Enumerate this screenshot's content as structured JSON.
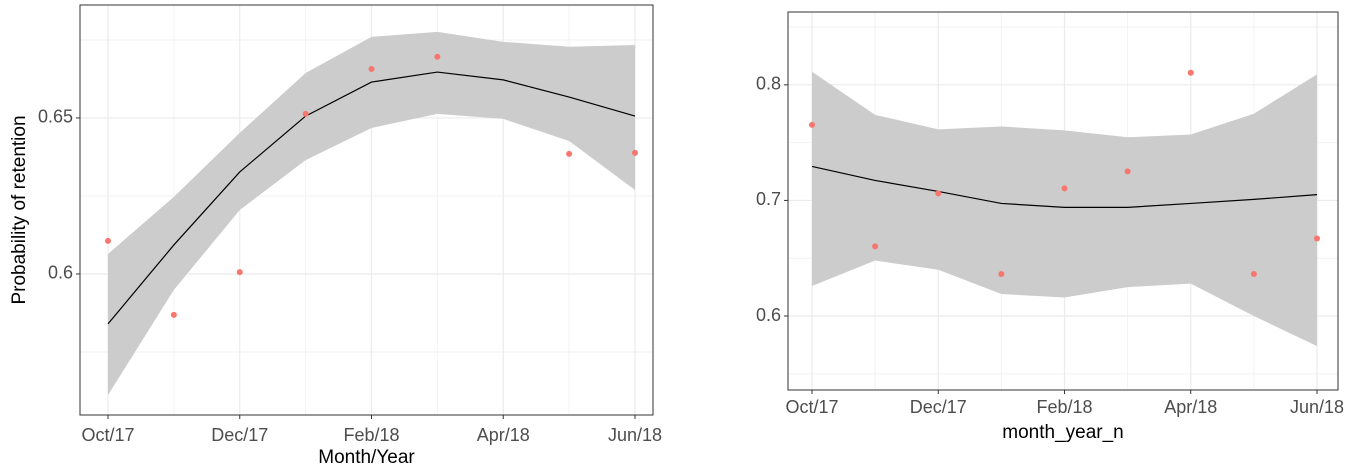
{
  "chart_data": [
    {
      "type": "line",
      "x_title": "Month/Year",
      "y_title": "Probability of retention",
      "categories": [
        "Oct/17",
        null,
        "Dec/17",
        null,
        "Feb/18",
        null,
        "Apr/18",
        null,
        "Jun/18"
      ],
      "ylim": [
        0.5548,
        0.6862
      ],
      "yticks": [
        0.6,
        0.65
      ],
      "grid": true,
      "points": {
        "color": "#f8766d",
        "values": [
          0.6106,
          0.5869,
          0.6006,
          0.6513,
          0.6657,
          0.6696,
          null,
          0.6385,
          0.6388
        ]
      },
      "fit": {
        "color": "#000000",
        "values": [
          0.584,
          0.6093,
          0.6327,
          0.6506,
          0.6615,
          0.6647,
          0.6622,
          0.6567,
          0.6506
        ]
      },
      "band": {
        "color": "#cccccc",
        "upper": [
          0.6064,
          0.6247,
          0.6452,
          0.6644,
          0.676,
          0.6776,
          0.6744,
          0.6728,
          0.6734
        ],
        "lower": [
          0.5612,
          0.5949,
          0.6205,
          0.6365,
          0.6468,
          0.6513,
          0.6497,
          0.6426,
          0.6269
        ]
      }
    },
    {
      "type": "line",
      "x_title": "month_year_n",
      "categories": [
        "Oct/17",
        null,
        "Dec/17",
        null,
        "Feb/18",
        null,
        "Apr/18",
        null,
        "Jun/18"
      ],
      "ylim": [
        0.536,
        0.863
      ],
      "yticks": [
        0.6,
        0.7,
        0.8
      ],
      "grid": true,
      "points": {
        "color": "#f8766d",
        "values": [
          0.7654,
          0.6602,
          0.7061,
          0.6364,
          0.7104,
          0.7251,
          0.8104,
          0.6364,
          0.6671
        ]
      },
      "fit": {
        "color": "#000000",
        "values": [
          0.7294,
          0.7173,
          0.7078,
          0.6974,
          0.694,
          0.694,
          0.6974,
          0.7009,
          0.705
        ]
      },
      "band": {
        "color": "#cccccc",
        "upper": [
          0.8113,
          0.774,
          0.7615,
          0.764,
          0.7606,
          0.7546,
          0.757,
          0.775,
          0.809
        ],
        "lower": [
          0.626,
          0.648,
          0.64,
          0.619,
          0.616,
          0.625,
          0.628,
          0.6,
          0.574
        ]
      }
    }
  ]
}
